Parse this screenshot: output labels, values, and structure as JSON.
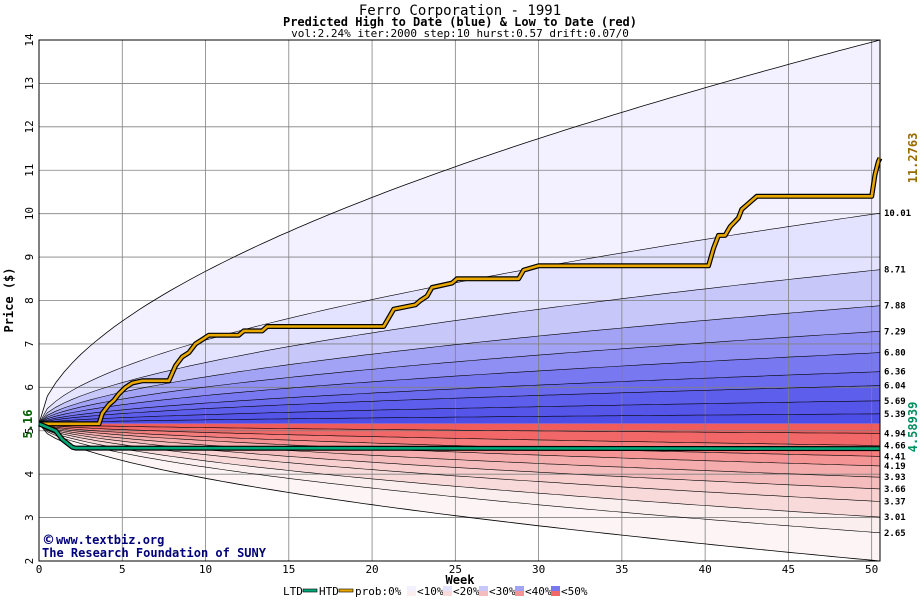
{
  "chart_data": {
    "type": "area",
    "title": "Ferro Corporation - 1991",
    "subtitle": "Predicted High to Date (blue) &  Low to Date (red)",
    "params": "vol:2.24% iter:2000 step:10 hurst:0.57 drift:0.07/0",
    "xlabel": "Week",
    "ylabel": "Price ($)",
    "xlim": [
      0,
      50.5
    ],
    "ylim": [
      2,
      14
    ],
    "x_ticks": [
      0,
      5,
      10,
      15,
      20,
      25,
      30,
      35,
      40,
      45,
      50
    ],
    "y_ticks": [
      2,
      3,
      4,
      5,
      6,
      7,
      8,
      9,
      10,
      11,
      12,
      13,
      14
    ],
    "grid": true,
    "start_price": 5.16,
    "start_label": "5.16",
    "high_quantile_ends": [
      10.01,
      8.71,
      7.88,
      7.29,
      6.8,
      6.36,
      6.04,
      5.69,
      5.39
    ],
    "high_quantile_labels": [
      "10.01",
      "8.71",
      "7.88",
      "7.29",
      "6.80",
      "6.36",
      "6.04",
      "5.69",
      "5.39"
    ],
    "low_quantile_ends": [
      4.94,
      4.66,
      4.41,
      4.19,
      3.93,
      3.66,
      3.37,
      3.01,
      2.65
    ],
    "low_quantile_labels": [
      "4.94",
      "4.66",
      "4.41",
      "4.19",
      "3.93",
      "3.66",
      "3.37",
      "3.01",
      "2.65"
    ],
    "outer_high_end": 14.0,
    "outer_low_end": 2.0,
    "series": [
      {
        "name": "HTD",
        "color": "#e8a800",
        "x": [
          0,
          3.6,
          3.8,
          4.2,
          4.5,
          4.8,
          5.2,
          5.6,
          6.2,
          7.8,
          8.2,
          8.6,
          9.0,
          9.4,
          9.8,
          10.2,
          12.0,
          12.3,
          13.4,
          13.7,
          20.7,
          21.0,
          21.3,
          22.6,
          22.9,
          23.3,
          23.6,
          24.8,
          25.1,
          28.8,
          29.1,
          30.0,
          30.3,
          40.2,
          40.5,
          40.8,
          41.2,
          41.5,
          42.0,
          42.2,
          42.5,
          42.8,
          43.1,
          43.4,
          43.7,
          50.0,
          50.2,
          50.4,
          50.6
        ],
        "y": [
          5.16,
          5.16,
          5.4,
          5.6,
          5.7,
          5.85,
          6.0,
          6.1,
          6.15,
          6.15,
          6.5,
          6.7,
          6.8,
          7.0,
          7.1,
          7.2,
          7.2,
          7.3,
          7.3,
          7.4,
          7.4,
          7.6,
          7.8,
          7.9,
          8.0,
          8.1,
          8.3,
          8.4,
          8.5,
          8.5,
          8.7,
          8.8,
          8.8,
          8.8,
          9.2,
          9.5,
          9.5,
          9.7,
          9.9,
          10.1,
          10.2,
          10.3,
          10.4,
          10.4,
          10.4,
          10.4,
          10.9,
          11.2,
          11.28
        ],
        "end_value": 11.2763,
        "end_label": "11.2763"
      },
      {
        "name": "LTD",
        "color": "#00a878",
        "x": [
          0,
          1.0,
          1.4,
          2.0,
          2.2,
          50.6
        ],
        "y": [
          5.16,
          5.0,
          4.8,
          4.62,
          4.6,
          4.58939
        ],
        "end_value": 4.58939,
        "end_label": "4.58939"
      }
    ],
    "credit_line1": "www.textbiz.org",
    "credit_symbol": "©",
    "credit_line2": "The Research Foundation of SUNY",
    "legend": {
      "ltd_label": "LTD",
      "htd_label": "HTD",
      "prob_label": "prob:0%",
      "buckets": [
        "<10%",
        "<20%",
        "<30%",
        "<40%",
        "<50%"
      ],
      "bucket_colors": [
        [
          "#fbeeee",
          "#f3f0ff"
        ],
        [
          "#f8dada",
          "#e3e2ff"
        ],
        [
          "#f4bcbc",
          "#c7c7fa"
        ],
        [
          "#f49494",
          "#a3a3f6"
        ],
        [
          "#f26767",
          "#7878f0"
        ]
      ]
    },
    "colors": {
      "blue_bands": [
        "#f3f0ff",
        "#e3e2ff",
        "#c7c7fa",
        "#a3a3f6",
        "#8f8ff3",
        "#7878f0",
        "#6a6aee",
        "#5e5eec",
        "#5555ea",
        "#4d4de8"
      ],
      "red_bands": [
        "#f05b5b",
        "#f26767",
        "#f47c7c",
        "#f49494",
        "#f4acac",
        "#f4bcbc",
        "#f8d0d0",
        "#f8dada",
        "#fbeeee",
        "#fdf5f5"
      ],
      "grid": "#808080",
      "htd_label": "#9a6a00",
      "ltd_label": "#009060",
      "start_label": "#006000"
    }
  }
}
